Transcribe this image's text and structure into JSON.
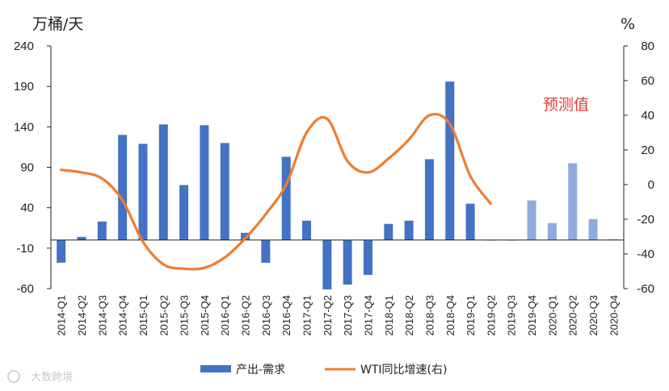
{
  "chart_data": {
    "type": "bar+line",
    "y_left_unit": "万桶/天",
    "y_right_unit": "%",
    "y_left_ticks": [
      "240",
      "190",
      "140",
      "90",
      "40",
      "-10",
      "-60"
    ],
    "y_right_ticks": [
      "80",
      "60",
      "40",
      "20",
      "0",
      "-20",
      "-40",
      "-60"
    ],
    "ylim_left": [
      -60,
      240
    ],
    "ylim_right": [
      -60,
      80
    ],
    "categories": [
      "2014-Q1",
      "2014-Q2",
      "2014-Q3",
      "2014-Q4",
      "2015-Q1",
      "2015-Q2",
      "2015-Q3",
      "2015-Q4",
      "2016-Q1",
      "2016-Q2",
      "2016-Q3",
      "2016-Q4",
      "2017-Q1",
      "2017-Q2",
      "2017-Q3",
      "2017-Q4",
      "2018-Q1",
      "2018-Q2",
      "2018-Q3",
      "2018-Q4",
      "2019-Q1",
      "2019-Q2",
      "2019-Q3",
      "2019-Q4",
      "2020-Q1",
      "2020-Q2",
      "2020-Q3",
      "2020-Q4"
    ],
    "series": [
      {
        "name": "产出-需求",
        "type": "bar",
        "axis": "left",
        "color": "#4472c4",
        "forecast_color": "#8faadc",
        "values": [
          -28,
          4,
          23,
          130,
          119,
          143,
          68,
          142,
          120,
          9,
          -28,
          103,
          24,
          -61,
          -55,
          -43,
          20,
          24,
          100,
          196,
          45,
          0,
          0,
          49,
          21,
          95,
          26,
          1
        ],
        "forecast": [
          false,
          false,
          false,
          false,
          false,
          false,
          false,
          false,
          false,
          false,
          false,
          false,
          false,
          false,
          false,
          false,
          false,
          false,
          false,
          false,
          false,
          false,
          false,
          true,
          true,
          true,
          true,
          true
        ]
      },
      {
        "name": "WTI同比增速(右)",
        "type": "line",
        "axis": "right",
        "color": "#ed7d31",
        "values": [
          8.5,
          7,
          3.5,
          -9,
          -33,
          -46,
          -48.5,
          -48,
          -42,
          -31,
          -17,
          0,
          30,
          38,
          13.5,
          7,
          15,
          26,
          40,
          35,
          5,
          -11,
          null,
          null,
          null,
          null,
          null,
          null
        ]
      }
    ],
    "annotation": "预测值",
    "annotation_color": "#e03c3c",
    "legend": [
      "产出-需求",
      "WTI同比增速(右)"
    ],
    "legend_position": "bottom",
    "grid": false
  },
  "watermark": "大数跨境"
}
